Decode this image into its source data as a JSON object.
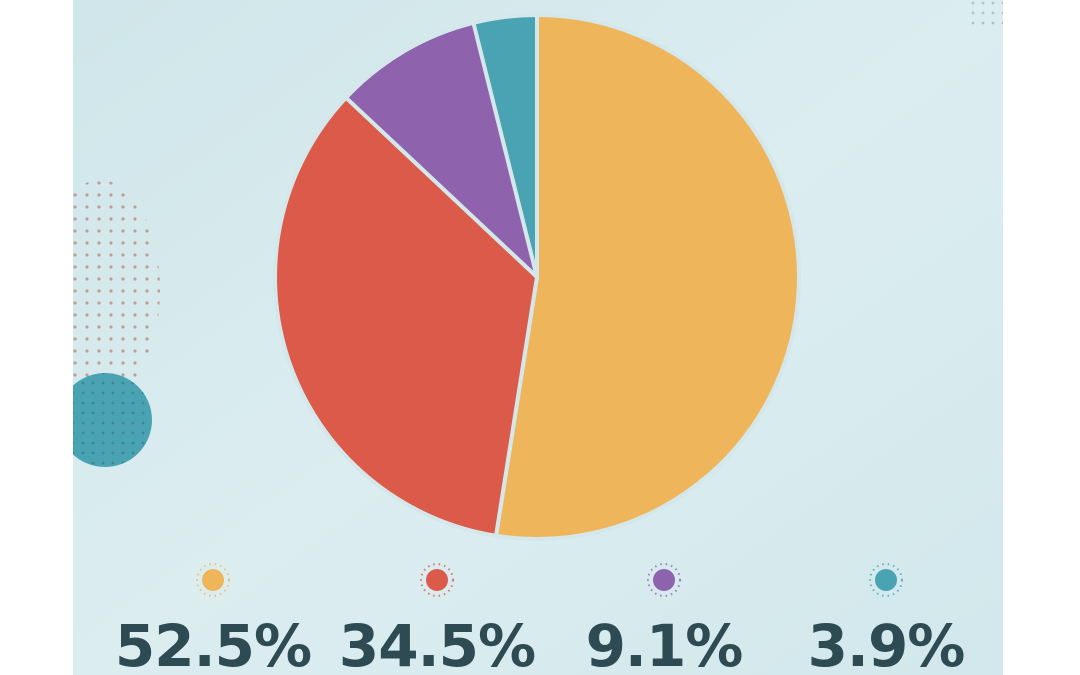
{
  "chart_data": {
    "type": "pie",
    "values": [
      52.5,
      34.5,
      9.1,
      3.9
    ],
    "value_labels": [
      "52.5%",
      "34.5%",
      "9.1%",
      "3.9%"
    ],
    "colors": [
      "#efb55a",
      "#dc5a4a",
      "#8e62ad",
      "#4aa3b3"
    ]
  }
}
